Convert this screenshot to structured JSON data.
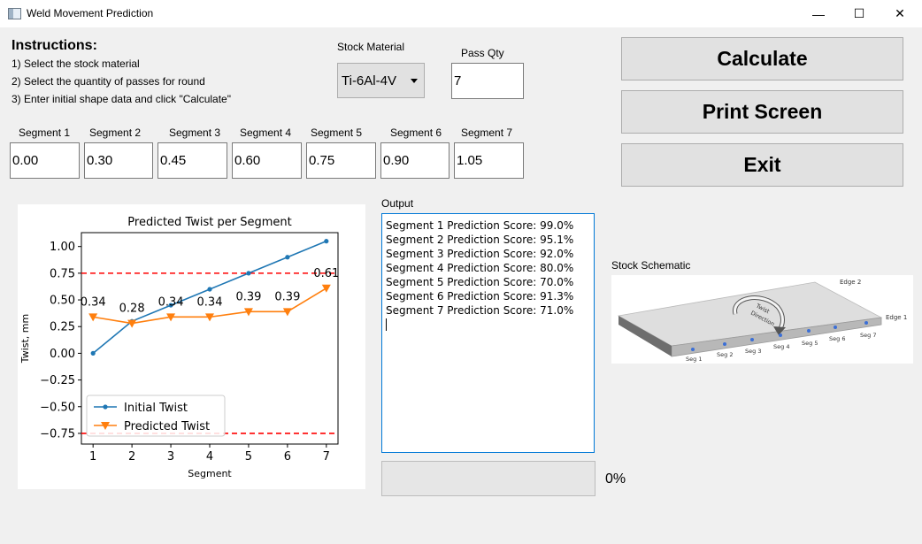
{
  "window": {
    "title": "Weld Movement Prediction",
    "minimize_glyph": "—",
    "maximize_glyph": "☐",
    "close_glyph": "✕"
  },
  "instructions": {
    "heading": "Instructions:",
    "steps": [
      "1) Select the stock material",
      "2) Select the quantity of passes for round",
      "3) Enter initial shape data and click \"Calculate\""
    ]
  },
  "stock_material": {
    "label": "Stock Material",
    "value": "Ti-6Al-4V"
  },
  "pass_qty": {
    "label": "Pass Qty",
    "value": "7"
  },
  "segments": [
    {
      "label": "Segment 1",
      "value": "0.00"
    },
    {
      "label": "Segment 2",
      "value": "0.30"
    },
    {
      "label": "Segment 3",
      "value": "0.45"
    },
    {
      "label": "Segment 4",
      "value": "0.60"
    },
    {
      "label": "Segment 5",
      "value": "0.75"
    },
    {
      "label": "Segment 6",
      "value": "0.90"
    },
    {
      "label": "Segment 7",
      "value": "1.05"
    }
  ],
  "buttons": {
    "calculate": "Calculate",
    "print_screen": "Print Screen",
    "exit": "Exit"
  },
  "output": {
    "label": "Output",
    "lines": [
      "Segment 1 Prediction Score: 99.0%",
      "Segment 2 Prediction Score: 95.1%",
      "Segment 3 Prediction Score: 92.0%",
      "Segment 4 Prediction Score: 80.0%",
      "Segment 5 Prediction Score: 70.0%",
      "Segment 6 Prediction Score: 91.3%",
      "Segment 7 Prediction Score: 71.0%"
    ]
  },
  "progress": {
    "value": 0,
    "text": "0%"
  },
  "schematic": {
    "label": "Stock Schematic",
    "edge_labels": [
      "Edge 2",
      "Edge 1"
    ],
    "twist_label_1": "Twist",
    "twist_label_2": "Direction",
    "seg_labels": [
      "Seg 1",
      "Seg 2",
      "Seg 3",
      "Seg 4",
      "Seg 5",
      "Seg 6",
      "Seg 7"
    ]
  },
  "chart_data": {
    "type": "line",
    "title": "Predicted Twist per Segment",
    "xlabel": "Segment",
    "ylabel": "Twist, mm",
    "x": [
      1,
      2,
      3,
      4,
      5,
      6,
      7
    ],
    "xlim": [
      0.7,
      7.3
    ],
    "ylim": [
      -0.85,
      1.13
    ],
    "yticks": [
      1.0,
      0.75,
      0.5,
      0.25,
      0.0,
      -0.25,
      -0.5,
      -0.75
    ],
    "ytick_labels": [
      "1.00",
      "0.75",
      "0.50",
      "0.25",
      "0.00",
      "−0.25",
      "−0.50",
      "−0.75"
    ],
    "xtick_labels": [
      "1",
      "2",
      "3",
      "4",
      "5",
      "6",
      "7"
    ],
    "series": [
      {
        "name": "Initial Twist",
        "color": "#1f77b4",
        "marker": "circle",
        "values": [
          0.0,
          0.3,
          0.45,
          0.6,
          0.75,
          0.9,
          1.05
        ]
      },
      {
        "name": "Predicted Twist",
        "color": "#ff7f0e",
        "marker": "triangle-down",
        "values": [
          0.34,
          0.28,
          0.34,
          0.34,
          0.39,
          0.39,
          0.61
        ]
      }
    ],
    "data_labels": [
      "0.34",
      "0.28",
      "0.34",
      "0.34",
      "0.39",
      "0.39",
      "0.61"
    ],
    "hlines": {
      "values": [
        0.75,
        -0.75
      ],
      "color": "#ff0000",
      "style": "dashed"
    },
    "legend_placement": "lower-left",
    "grid": false
  }
}
